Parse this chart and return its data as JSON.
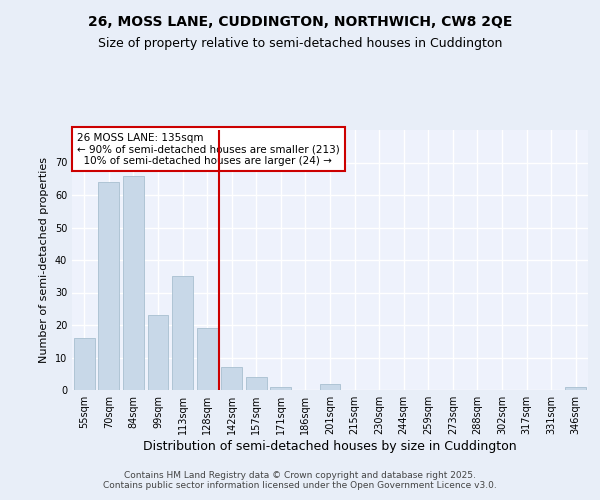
{
  "title": "26, MOSS LANE, CUDDINGTON, NORTHWICH, CW8 2QE",
  "subtitle": "Size of property relative to semi-detached houses in Cuddington",
  "xlabel": "Distribution of semi-detached houses by size in Cuddington",
  "ylabel": "Number of semi-detached properties",
  "categories": [
    "55sqm",
    "70sqm",
    "84sqm",
    "99sqm",
    "113sqm",
    "128sqm",
    "142sqm",
    "157sqm",
    "171sqm",
    "186sqm",
    "201sqm",
    "215sqm",
    "230sqm",
    "244sqm",
    "259sqm",
    "273sqm",
    "288sqm",
    "302sqm",
    "317sqm",
    "331sqm",
    "346sqm"
  ],
  "values": [
    16,
    64,
    66,
    23,
    35,
    19,
    7,
    4,
    1,
    0,
    2,
    0,
    0,
    0,
    0,
    0,
    0,
    0,
    0,
    0,
    1
  ],
  "bar_color": "#c8d8e8",
  "bar_edge_color": "#a8bfd0",
  "vline_x_index": 5.5,
  "vline_color": "#cc0000",
  "annotation_line1": "26 MOSS LANE: 135sqm",
  "annotation_line2": "← 90% of semi-detached houses are smaller (213)",
  "annotation_line3": "  10% of semi-detached houses are larger (24) →",
  "annotation_box_color": "#ffffff",
  "annotation_box_edge": "#cc0000",
  "ylim": [
    0,
    80
  ],
  "yticks": [
    0,
    10,
    20,
    30,
    40,
    50,
    60,
    70
  ],
  "bg_color": "#e8eef8",
  "plot_bg_color": "#eef2fc",
  "grid_color": "#ffffff",
  "footer": "Contains HM Land Registry data © Crown copyright and database right 2025.\nContains public sector information licensed under the Open Government Licence v3.0.",
  "title_fontsize": 10,
  "subtitle_fontsize": 9,
  "xlabel_fontsize": 9,
  "ylabel_fontsize": 8,
  "tick_fontsize": 7,
  "annotation_fontsize": 7.5,
  "footer_fontsize": 6.5
}
